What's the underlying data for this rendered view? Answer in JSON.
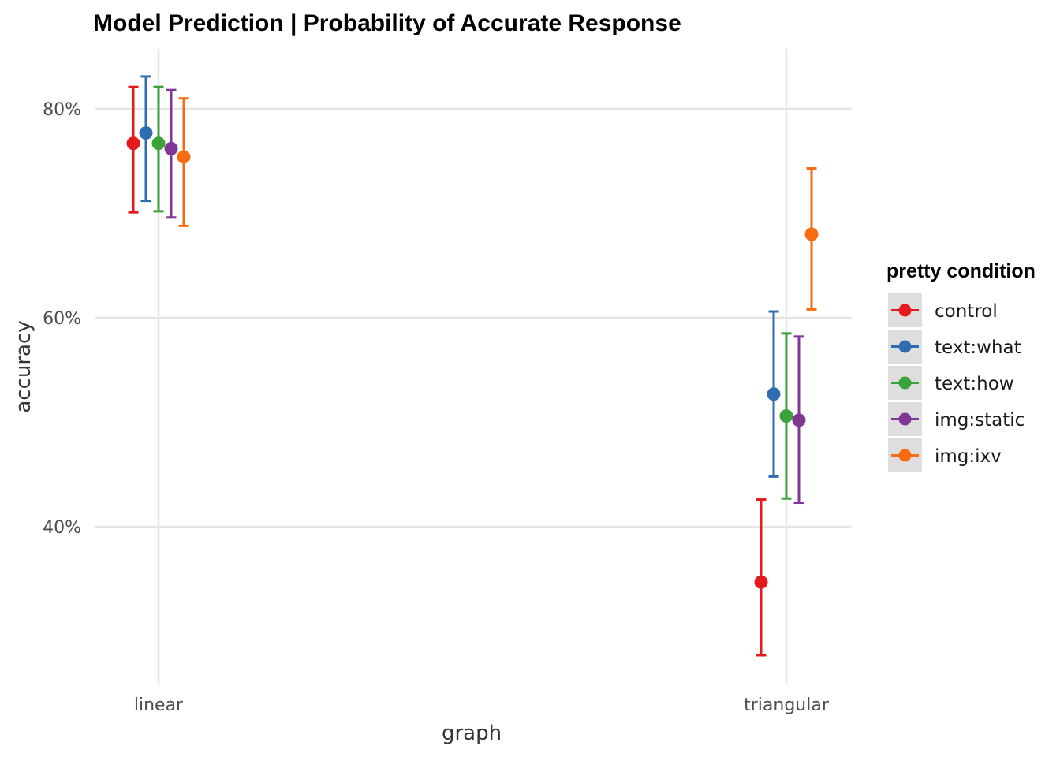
{
  "chart_data": {
    "type": "scatter",
    "title": "Model Prediction | Probability of Accurate Response",
    "xlabel": "graph",
    "ylabel": "accuracy",
    "categories": [
      "linear",
      "triangular"
    ],
    "y_ticks": [
      {
        "value": 0.4,
        "label": "40%"
      },
      {
        "value": 0.6,
        "label": "60%"
      },
      {
        "value": 0.8,
        "label": "80%"
      }
    ],
    "ylim": [
      0.27,
      0.86
    ],
    "grid": true,
    "legend_title": "pretty condition",
    "legend_position": "right",
    "series": [
      {
        "name": "control",
        "color": "#e41a1c",
        "points": [
          {
            "category": "linear",
            "y": 0.767,
            "ymin": 0.701,
            "ymax": 0.821
          },
          {
            "category": "triangular",
            "y": 0.347,
            "ymin": 0.277,
            "ymax": 0.426
          }
        ]
      },
      {
        "name": "text:what",
        "color": "#2f6db3",
        "points": [
          {
            "category": "linear",
            "y": 0.777,
            "ymin": 0.712,
            "ymax": 0.831
          },
          {
            "category": "triangular",
            "y": 0.527,
            "ymin": 0.448,
            "ymax": 0.606
          }
        ]
      },
      {
        "name": "text:how",
        "color": "#3ba13a",
        "points": [
          {
            "category": "linear",
            "y": 0.767,
            "ymin": 0.702,
            "ymax": 0.821
          },
          {
            "category": "triangular",
            "y": 0.506,
            "ymin": 0.427,
            "ymax": 0.585
          }
        ]
      },
      {
        "name": "img:static",
        "color": "#803794",
        "points": [
          {
            "category": "linear",
            "y": 0.762,
            "ymin": 0.696,
            "ymax": 0.818
          },
          {
            "category": "triangular",
            "y": 0.502,
            "ymin": 0.423,
            "ymax": 0.582
          }
        ]
      },
      {
        "name": "img:ixv",
        "color": "#f96b0f",
        "points": [
          {
            "category": "linear",
            "y": 0.754,
            "ymin": 0.688,
            "ymax": 0.81
          },
          {
            "category": "triangular",
            "y": 0.68,
            "ymin": 0.608,
            "ymax": 0.743
          }
        ]
      }
    ]
  }
}
